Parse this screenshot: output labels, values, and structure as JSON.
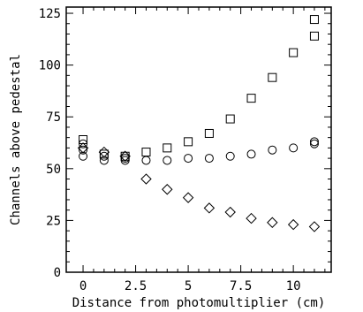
{
  "chart_data": {
    "type": "scatter",
    "xlabel": "Distance from photomultiplier (cm)",
    "ylabel": "Channels above pedestal",
    "xlim": [
      -0.8,
      11.8
    ],
    "ylim": [
      0,
      128
    ],
    "xticks": [
      0,
      2.5,
      5,
      7.5,
      10
    ],
    "xtick_labels": [
      "0",
      "2.5",
      "5",
      "7.5",
      "10"
    ],
    "yticks": [
      0,
      25,
      50,
      75,
      100,
      125
    ],
    "ytick_labels": [
      "0",
      "25",
      "50",
      "75",
      "100",
      "125"
    ],
    "grid": false,
    "legend": "none",
    "series": [
      {
        "marker": "square",
        "points": [
          [
            0,
            64
          ],
          [
            1,
            57
          ],
          [
            2,
            56
          ],
          [
            3,
            58
          ],
          [
            4,
            60
          ],
          [
            5,
            63
          ],
          [
            6,
            67
          ],
          [
            7,
            74
          ],
          [
            8,
            84
          ],
          [
            9,
            94
          ],
          [
            10,
            106
          ],
          [
            11,
            114
          ],
          [
            11,
            122
          ]
        ]
      },
      {
        "marker": "circle",
        "points": [
          [
            0,
            56
          ],
          [
            0,
            59
          ],
          [
            0,
            62
          ],
          [
            1,
            54
          ],
          [
            1,
            56
          ],
          [
            2,
            54
          ],
          [
            2,
            55
          ],
          [
            3,
            54
          ],
          [
            4,
            54
          ],
          [
            5,
            55
          ],
          [
            6,
            55
          ],
          [
            7,
            56
          ],
          [
            8,
            57
          ],
          [
            9,
            59
          ],
          [
            10,
            60
          ],
          [
            11,
            62
          ],
          [
            11,
            63
          ]
        ]
      },
      {
        "marker": "diamond",
        "points": [
          [
            0,
            60
          ],
          [
            1,
            58
          ],
          [
            2,
            56
          ],
          [
            3,
            45
          ],
          [
            4,
            40
          ],
          [
            5,
            36
          ],
          [
            6,
            31
          ],
          [
            7,
            29
          ],
          [
            8,
            26
          ],
          [
            9,
            24
          ],
          [
            10,
            23
          ],
          [
            11,
            22
          ]
        ]
      }
    ]
  }
}
